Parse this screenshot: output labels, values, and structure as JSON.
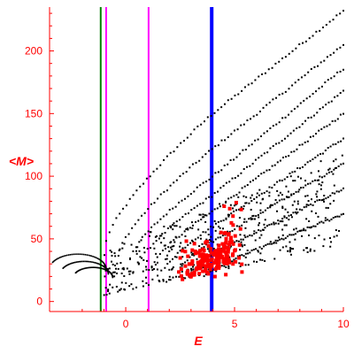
{
  "chart_data": {
    "type": "scatter",
    "title": "",
    "xlabel": "E",
    "ylabel": "<M>",
    "xlim": [
      -3.5,
      10
    ],
    "ylim": [
      -8,
      235
    ],
    "x_ticks": [
      0,
      5,
      10
    ],
    "y_ticks": [
      0,
      50,
      100,
      150,
      200
    ],
    "grid": false,
    "legend": "none",
    "colors": {
      "axis": "#ff0000",
      "black_points": "#000000",
      "red_points": "#ff0000",
      "vline_green": "#008000",
      "vline_magenta": "#ff00ff",
      "vline_blue": "#0000ff"
    },
    "vertical_lines": [
      {
        "x": -1.15,
        "color": "#008000"
      },
      {
        "x": -0.9,
        "color": "#ff00ff"
      },
      {
        "x": 1.05,
        "color": "#ff00ff"
      },
      {
        "x": 3.95,
        "color": "#0000ff",
        "thick": true
      }
    ],
    "series": [
      {
        "color": "#000000",
        "bands": [
          {
            "x0": -0.9,
            "y0": 48,
            "x1": 4,
            "y1": 150,
            "x2": 10,
            "y2": 232
          },
          {
            "x0": -0.3,
            "y0": 40,
            "x1": 4,
            "y1": 122,
            "x2": 10,
            "y2": 205
          },
          {
            "x0": 0.2,
            "y0": 35,
            "x1": 4,
            "y1": 100,
            "x2": 10,
            "y2": 186
          },
          {
            "x0": 0.6,
            "y0": 30,
            "x1": 4,
            "y1": 85,
            "x2": 10,
            "y2": 168
          },
          {
            "x0": 1.2,
            "y0": 28,
            "x1": 4,
            "y1": 72,
            "x2": 10,
            "y2": 150
          },
          {
            "x0": 1.8,
            "y0": 26,
            "x1": 4,
            "y1": 60,
            "x2": 10,
            "y2": 130
          },
          {
            "x0": 2.4,
            "y0": 24,
            "x1": 4,
            "y1": 48,
            "x2": 10,
            "y2": 110
          },
          {
            "x0": 3.0,
            "y0": 22,
            "x1": 4,
            "y1": 38,
            "x2": 10,
            "y2": 90
          },
          {
            "x0": 3.6,
            "y0": 20,
            "x1": 5,
            "y1": 34,
            "x2": 10,
            "y2": 70
          }
        ],
        "arcs": [
          {
            "cx": -2.2,
            "cy": 33,
            "rx": 1.3,
            "ry": 12
          },
          {
            "cx": -1.9,
            "cy": 28,
            "rx": 1.1,
            "ry": 10
          },
          {
            "cx": -1.5,
            "cy": 24,
            "rx": 0.9,
            "ry": 8
          }
        ],
        "scatter_region": {
          "xmin": -1.0,
          "xmax": 10,
          "ylow_at_xmin": 5,
          "ylow_at_xmax": 45,
          "yhigh_at_xmin": 40,
          "yhigh_at_xmax": 120,
          "count": 420
        }
      },
      {
        "color": "#ff0000",
        "clusters": [
          {
            "cx": 3.6,
            "cy": 28,
            "sx": 0.45,
            "sy": 8,
            "count": 90
          },
          {
            "cx": 4.4,
            "cy": 30,
            "sx": 0.35,
            "sy": 9,
            "count": 70
          },
          {
            "cx": 4.8,
            "cy": 45,
            "sx": 0.25,
            "sy": 14,
            "count": 25
          },
          {
            "cx": 2.9,
            "cy": 22,
            "sx": 0.3,
            "sy": 5,
            "count": 15
          }
        ]
      }
    ]
  }
}
